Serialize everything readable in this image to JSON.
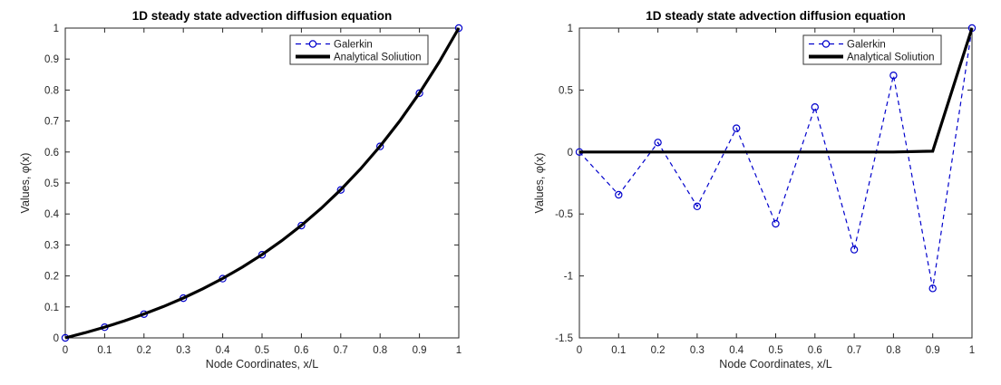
{
  "window": {
    "background": "#ffffff"
  },
  "style": {
    "axis_color": "#262626",
    "text_color": "#262626",
    "title_color": "#000000",
    "galerkin_blue": "#0000cc",
    "analytical_black": "#000000",
    "legend_border": "#333333",
    "legend_background": "#ffffff"
  },
  "chart_data": [
    {
      "type": "line",
      "title": "1D steady state advection diffusion equation",
      "xlabel": "Node Coordinates, x/L",
      "ylabel": "Values, φ(x)",
      "xlim": [
        0,
        1
      ],
      "ylim": [
        0,
        1
      ],
      "xticks": [
        0,
        0.1,
        0.2,
        0.3,
        0.4,
        0.5,
        0.6,
        0.7,
        0.8,
        0.9,
        1
      ],
      "xtick_labels": [
        "0",
        "0.1",
        "0.2",
        "0.3",
        "0.4",
        "0.5",
        "0.6",
        "0.7",
        "0.8",
        "0.9",
        "1"
      ],
      "yticks": [
        0,
        0.1,
        0.2,
        0.3,
        0.4,
        0.5,
        0.6,
        0.7,
        0.8,
        0.9,
        1
      ],
      "ytick_labels": [
        "0",
        "0.1",
        "0.2",
        "0.3",
        "0.4",
        "0.5",
        "0.6",
        "0.7",
        "0.8",
        "0.9",
        "1"
      ],
      "grid": false,
      "legend": {
        "position": "top-right-inside"
      },
      "series": [
        {
          "name": "Galerkin",
          "line": "dashed",
          "marker": "circle",
          "color": "#0000cc",
          "width": 1.2,
          "x": [
            0,
            0.1,
            0.2,
            0.3,
            0.4,
            0.5,
            0.6,
            0.7,
            0.8,
            0.9,
            1
          ],
          "y": [
            0,
            0.0345,
            0.0767,
            0.1283,
            0.1913,
            0.2683,
            0.3624,
            0.4775,
            0.6181,
            0.7899,
            1
          ]
        },
        {
          "name": "Analytical Soliution",
          "line": "solid",
          "marker": "none",
          "color": "#000000",
          "width": 3.2,
          "x": [
            0,
            0.05,
            0.1,
            0.15,
            0.2,
            0.25,
            0.3,
            0.35,
            0.4,
            0.45,
            0.5,
            0.55,
            0.6,
            0.65,
            0.7,
            0.75,
            0.8,
            0.85,
            0.9,
            0.95,
            1
          ],
          "y": [
            0,
            0.0165,
            0.0347,
            0.0548,
            0.077,
            0.1015,
            0.1287,
            0.1587,
            0.1918,
            0.2285,
            0.2689,
            0.3137,
            0.3631,
            0.4178,
            0.4782,
            0.545,
            0.6187,
            0.7003,
            0.7904,
            0.89,
            1
          ]
        }
      ]
    },
    {
      "type": "line",
      "title": "1D steady state advection diffusion equation",
      "xlabel": "Node Coordinates, x/L",
      "ylabel": "Values, φ(x)",
      "xlim": [
        0,
        1
      ],
      "ylim": [
        -1.5,
        1
      ],
      "xticks": [
        0,
        0.1,
        0.2,
        0.3,
        0.4,
        0.5,
        0.6,
        0.7,
        0.8,
        0.9,
        1
      ],
      "xtick_labels": [
        "0",
        "0.1",
        "0.2",
        "0.3",
        "0.4",
        "0.5",
        "0.6",
        "0.7",
        "0.8",
        "0.9",
        "1"
      ],
      "yticks": [
        -1.5,
        -1,
        -0.5,
        0,
        0.5,
        1
      ],
      "ytick_labels": [
        "-1.5",
        "-1",
        "-0.5",
        "0",
        "0.5",
        "1"
      ],
      "grid": false,
      "legend": {
        "position": "top-right-inside"
      },
      "series": [
        {
          "name": "Galerkin",
          "line": "dashed",
          "marker": "circle",
          "color": "#0000cc",
          "width": 1.2,
          "x": [
            0,
            0.1,
            0.2,
            0.3,
            0.4,
            0.5,
            0.6,
            0.7,
            0.8,
            0.9,
            1
          ],
          "y": [
            0,
            -0.3451,
            0.0767,
            -0.4389,
            0.1913,
            -0.5789,
            0.3624,
            -0.7881,
            0.6181,
            -1.1005,
            1
          ]
        },
        {
          "name": "Analytical Soliution",
          "line": "solid",
          "marker": "none",
          "color": "#000000",
          "width": 3.2,
          "x": [
            0,
            0.1,
            0.2,
            0.3,
            0.4,
            0.5,
            0.6,
            0.7,
            0.8,
            0.9,
            1
          ],
          "y": [
            0,
            0,
            0,
            0,
            0,
            0,
            0,
            0,
            0,
            0.0067,
            1
          ]
        }
      ]
    }
  ]
}
